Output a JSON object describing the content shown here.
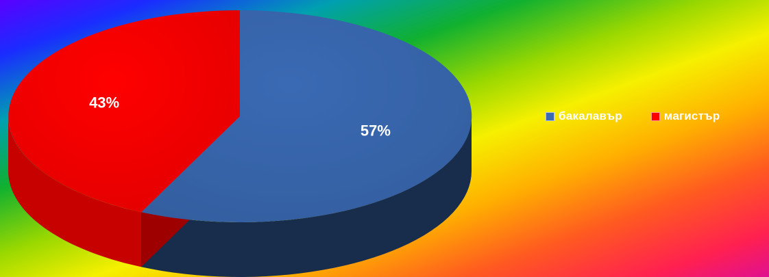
{
  "chart_data": {
    "type": "pie",
    "categories": [
      "бакалавър",
      "магистър"
    ],
    "values": [
      57,
      43
    ],
    "data_labels": [
      "57%",
      "43%"
    ],
    "colors": [
      "#3a6ab4",
      "#ff0000"
    ],
    "legend_position": "right",
    "three_d": true,
    "title": ""
  },
  "legend": {
    "items": [
      {
        "label": "бакалавър",
        "color": "#3a6ab4"
      },
      {
        "label": "магистър",
        "color": "#ff0000"
      }
    ]
  },
  "background": {
    "style": "rainbow-gradient"
  }
}
